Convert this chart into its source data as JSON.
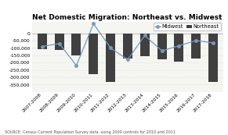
{
  "title": "Net Domestic Migration: Northeast vs. Midwest",
  "categories": [
    "2007-2008",
    "2008-2009",
    "2009-2010",
    "2010-2011",
    "2011-2012",
    "2012-2013",
    "2013-2014",
    "2014-2015",
    "2015-2016",
    "2016-2017",
    "2017-2018"
  ],
  "northeast_bars": [
    -110000,
    -115000,
    -150000,
    -280000,
    -330000,
    -170000,
    -155000,
    -180000,
    -195000,
    -170000,
    -330000
  ],
  "midwest_line": [
    -90000,
    -70000,
    -220000,
    65000,
    -100000,
    -180000,
    -15000,
    -120000,
    -85000,
    -50000,
    -65000
  ],
  "bar_color": "#404040",
  "line_color": "#7799bb",
  "marker_color": "#7799bb",
  "bg_color": "#ffffff",
  "plot_bg_color": "#f5f5f2",
  "grid_color": "#d8d8d8",
  "ylim": [
    -400000,
    80000
  ],
  "yticks": [
    0,
    -50000,
    -100000,
    -150000,
    -200000,
    -250000,
    -300000,
    -350000
  ],
  "source_text": "SOURCE: Census Current Population Survey data, using 2000 controls for 2010 and 2011",
  "legend_labels": [
    "Northeast",
    "Midwest"
  ],
  "title_fontsize": 6.5,
  "tick_fontsize": 4.2,
  "legend_fontsize": 4.8,
  "source_fontsize": 3.5
}
